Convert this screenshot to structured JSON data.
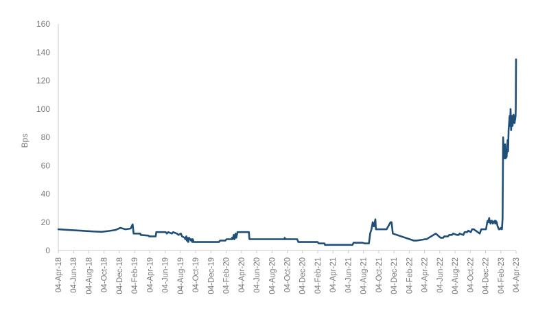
{
  "chart_data": {
    "type": "line",
    "title": "",
    "xlabel": "",
    "ylabel": "Bps",
    "ylim": [
      0,
      160
    ],
    "yticks": [
      0,
      20,
      40,
      60,
      80,
      100,
      120,
      140,
      160
    ],
    "grid": false,
    "legend": "none",
    "line_color": "#1f4e79",
    "x_range": [
      "2018-04-04",
      "2023-04-20"
    ],
    "x_tick_labels": [
      "04-Apr-18",
      "04-Jun-18",
      "04-Aug-18",
      "04-Oct-18",
      "04-Dec-18",
      "04-Feb-19",
      "04-Apr-19",
      "04-Jun-19",
      "04-Aug-19",
      "04-Oct-19",
      "04-Dec-19",
      "04-Feb-20",
      "04-Apr-20",
      "04-Jun-20",
      "04-Aug-20",
      "04-Oct-20",
      "04-Dec-20",
      "04-Feb-21",
      "04-Apr-21",
      "04-Jun-21",
      "04-Aug-21",
      "04-Oct-21",
      "04-Dec-21",
      "04-Feb-22",
      "04-Apr-22",
      "04-Jun-22",
      "04-Aug-22",
      "04-Oct-22",
      "04-Dec-22",
      "04-Feb-23",
      "04-Apr-23"
    ],
    "series": [
      {
        "x": [
          "2018-04-04",
          "2018-05-15",
          "2018-07-01",
          "2018-08-20",
          "2018-09-25",
          "2018-10-25",
          "2018-11-20",
          "2018-12-10",
          "2018-12-30",
          "2019-01-20",
          "2019-01-25",
          "2019-01-28",
          "2019-02-01",
          "2019-02-28",
          "2019-03-01",
          "2019-04-02",
          "2019-04-05",
          "2019-05-01",
          "2019-05-03",
          "2019-06-10",
          "2019-06-15",
          "2019-06-20",
          "2019-07-05",
          "2019-07-10",
          "2019-07-25",
          "2019-08-01",
          "2019-08-10",
          "2019-08-15",
          "2019-08-25",
          "2019-08-28",
          "2019-09-01",
          "2019-09-03",
          "2019-09-05",
          "2019-09-07",
          "2019-09-09",
          "2019-09-12",
          "2019-09-20",
          "2019-09-22",
          "2019-09-25",
          "2019-09-27",
          "2019-10-01",
          "2019-12-01",
          "2019-12-10",
          "2020-01-10",
          "2020-01-15",
          "2020-02-05",
          "2020-02-10",
          "2020-02-20",
          "2020-03-01",
          "2020-03-03",
          "2020-03-06",
          "2020-03-10",
          "2020-03-13",
          "2020-03-17",
          "2020-03-20",
          "2020-03-25",
          "2020-04-02",
          "2020-04-05",
          "2020-05-10",
          "2020-05-12",
          "2020-08-01",
          "2020-09-30",
          "2020-10-01",
          "2020-10-03",
          "2020-11-20",
          "2020-11-25",
          "2021-02-10",
          "2021-02-15",
          "2021-03-10",
          "2021-03-12",
          "2021-05-20",
          "2021-07-01",
          "2021-07-05",
          "2021-08-10",
          "2021-08-20",
          "2021-09-05",
          "2021-09-10",
          "2021-09-15",
          "2021-09-20",
          "2021-09-25",
          "2021-10-01",
          "2021-10-03",
          "2021-11-10",
          "2021-11-15",
          "2021-12-01",
          "2021-12-05",
          "2021-12-10",
          "2022-03-05",
          "2022-03-10",
          "2022-03-15",
          "2022-04-20",
          "2022-04-25",
          "2022-06-01",
          "2022-06-20",
          "2022-07-01",
          "2022-07-05",
          "2022-07-10",
          "2022-07-20",
          "2022-07-25",
          "2022-08-05",
          "2022-08-10",
          "2022-08-25",
          "2022-09-01",
          "2022-09-05",
          "2022-09-20",
          "2022-09-25",
          "2022-10-05",
          "2022-10-10",
          "2022-10-20",
          "2022-10-25",
          "2022-11-01",
          "2022-11-25",
          "2022-12-01",
          "2022-12-20",
          "2022-12-25",
          "2022-12-27",
          "2022-12-29",
          "2023-01-02",
          "2023-01-03",
          "2023-01-05",
          "2023-01-07",
          "2023-01-10",
          "2023-01-12",
          "2023-01-14",
          "2023-01-16",
          "2023-01-20",
          "2023-01-24",
          "2023-01-26",
          "2023-01-28",
          "2023-02-01",
          "2023-02-05",
          "2023-02-10",
          "2023-02-14",
          "2023-02-18",
          "2023-02-22",
          "2023-02-25",
          "2023-02-27",
          "2023-03-01",
          "2023-03-03",
          "2023-03-05",
          "2023-03-07",
          "2023-03-09",
          "2023-03-11",
          "2023-03-13",
          "2023-03-15",
          "2023-03-17",
          "2023-03-19",
          "2023-03-21",
          "2023-03-23",
          "2023-03-25",
          "2023-03-27",
          "2023-03-29",
          "2023-03-31",
          "2023-04-02",
          "2023-04-04",
          "2023-04-06",
          "2023-04-10",
          "2023-04-14",
          "2023-04-18",
          "2023-04-19",
          "2023-04-20"
        ],
        "y": [
          15,
          14.5,
          14,
          13.5,
          13.2,
          13.8,
          14.5,
          16,
          15,
          15.5,
          17.5,
          18.5,
          12,
          12,
          11,
          10.5,
          10,
          10,
          13,
          13,
          12,
          13,
          12,
          13,
          12,
          11,
          12,
          10,
          9,
          8,
          10,
          7,
          9,
          8,
          6,
          9,
          7,
          8,
          6,
          8,
          6,
          6,
          6,
          6,
          7,
          7,
          8,
          8,
          8,
          9,
          8,
          11,
          8,
          12,
          9,
          13,
          13,
          13,
          13,
          8,
          8,
          8,
          9,
          8,
          8,
          6,
          6,
          5,
          5,
          4,
          4,
          4,
          5.5,
          5.5,
          5,
          5,
          12,
          15,
          20,
          17,
          22,
          15,
          15,
          15,
          20,
          20,
          12,
          7,
          7,
          7,
          8,
          8,
          12,
          9,
          9,
          10,
          10,
          10,
          11,
          11,
          12,
          11,
          11,
          12,
          11,
          13,
          13,
          14,
          13,
          15,
          15,
          12,
          15,
          15,
          20,
          21,
          20,
          23,
          20,
          21,
          19,
          21,
          20,
          21,
          19,
          20,
          21,
          19,
          21,
          20,
          17,
          15,
          15,
          16,
          15,
          23,
          80,
          70,
          65,
          70,
          75,
          65,
          70,
          66,
          72,
          78,
          70,
          85,
          90,
          95,
          88,
          100,
          85,
          92,
          95,
          88,
          96,
          90,
          95,
          100,
          135
        ]
      }
    ]
  }
}
